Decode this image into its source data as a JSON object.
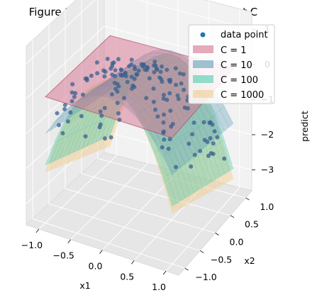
{
  "chart_data": {
    "type": "scatter",
    "title": "Figure 2: Lasso's Predictions for Different C",
    "xlabel": "x1",
    "ylabel": "x2",
    "zlabel": "predict",
    "x_ticks": [
      "−1.0",
      "−0.5",
      "0.0",
      "0.5",
      "1.0"
    ],
    "y_ticks": [
      "−1.0",
      "−0.5",
      "0.0",
      "0.5",
      "1.0"
    ],
    "z_ticks": [
      "−3",
      "−2",
      "−1",
      "0",
      "1"
    ],
    "xlim": [
      -1.2,
      1.2
    ],
    "ylim": [
      -1.2,
      1.2
    ],
    "zlim": [
      -3.6,
      1.5
    ],
    "legend_position": "top-right",
    "legend": [
      "data point",
      "C = 1",
      "C = 10",
      "C = 100",
      "C = 1000"
    ],
    "colors": {
      "data_point": "#1f77b4",
      "C = 1": "#d6728e",
      "C = 10": "#5f9fb8",
      "C = 100": "#3fc8a6",
      "C = 1000": "#f1cd8c"
    },
    "surfaces": [
      {
        "name": "C = 1",
        "model": "z = 0",
        "values_at_corners": [
          0,
          0,
          0,
          0
        ]
      },
      {
        "name": "C = 10",
        "model": "z = a*x1^2 + b*x2 + c",
        "values_at_center": 0.3,
        "values_at_edges": -1.6
      },
      {
        "name": "C = 100",
        "model": "z = a*x1^2 + b*x2 + c",
        "values_at_center": 0.4,
        "values_at_edges": -2.9
      },
      {
        "name": "C = 1000",
        "model": "z = a*x1^2 + b*x2 + c",
        "values_at_center": 0.45,
        "values_at_edges": -3.2
      }
    ],
    "points_description_values": {
      "n_points": 150,
      "x1_range": [
        -1.0,
        1.0
      ],
      "x2_range": [
        -1.0,
        1.0
      ],
      "z_model": "z ≈ 0.45 - 2.3*x1^2 - 1.0*x2 (with noise)"
    }
  }
}
